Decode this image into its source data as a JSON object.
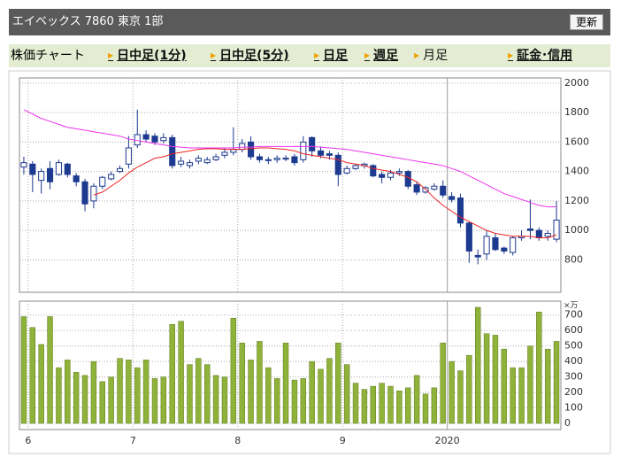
{
  "header": {
    "title": "エイベックス 7860 東京 1部",
    "button": "更新"
  },
  "nav": {
    "label": "株価チャート",
    "tabs": [
      "日中足(1分)",
      "日中足(5分)",
      "日足",
      "週足",
      "月足",
      "証金･信用"
    ]
  },
  "chart_data": [
    {
      "type": "candlestick",
      "categories": [
        null,
        "6",
        null,
        null,
        null,
        null,
        null,
        null,
        null,
        null,
        null,
        null,
        null,
        "7",
        null,
        null,
        null,
        null,
        null,
        null,
        null,
        null,
        null,
        null,
        null,
        "8",
        null,
        null,
        null,
        null,
        null,
        null,
        null,
        null,
        null,
        null,
        null,
        "9",
        null,
        null,
        null,
        null,
        null,
        null,
        null,
        null,
        null,
        null,
        null,
        "2020",
        null,
        null,
        null,
        null,
        null,
        null,
        null,
        null,
        null,
        null,
        null,
        null
      ],
      "open": [
        1430,
        1450,
        1340,
        1420,
        1380,
        1450,
        1370,
        1330,
        1200,
        1300,
        1350,
        1400,
        1450,
        1580,
        1650,
        1640,
        1610,
        1630,
        1450,
        1440,
        1470,
        1460,
        1480,
        1510,
        1530,
        1550,
        1600,
        1500,
        1480,
        1480,
        1490,
        1500,
        1480,
        1630,
        1540,
        1520,
        1510,
        1390,
        1420,
        1440,
        1440,
        1380,
        1360,
        1390,
        1400,
        1310,
        1260,
        1280,
        1300,
        1230,
        1220,
        1050,
        830,
        840,
        950,
        880,
        850,
        950,
        1010,
        1000,
        960,
        940
      ],
      "high": [
        1500,
        1470,
        1420,
        1470,
        1480,
        1460,
        1390,
        1350,
        1320,
        1370,
        1400,
        1440,
        1640,
        1820,
        1680,
        1660,
        1660,
        1650,
        1500,
        1480,
        1510,
        1500,
        1520,
        1560,
        1700,
        1620,
        1640,
        1520,
        1500,
        1510,
        1510,
        1520,
        1640,
        1640,
        1570,
        1540,
        1530,
        1440,
        1450,
        1460,
        1450,
        1400,
        1410,
        1420,
        1410,
        1330,
        1300,
        1320,
        1340,
        1260,
        1250,
        1060,
        870,
        1000,
        980,
        890,
        960,
        1000,
        1210,
        1020,
        1000,
        1200
      ],
      "low": [
        1380,
        1260,
        1250,
        1280,
        1370,
        1360,
        1300,
        1130,
        1150,
        1280,
        1340,
        1390,
        1420,
        1560,
        1600,
        1580,
        1590,
        1420,
        1430,
        1420,
        1450,
        1450,
        1470,
        1490,
        1510,
        1530,
        1480,
        1460,
        1450,
        1460,
        1470,
        1440,
        1460,
        1500,
        1490,
        1480,
        1300,
        1380,
        1410,
        1420,
        1360,
        1320,
        1340,
        1370,
        1280,
        1240,
        1250,
        1270,
        1220,
        1190,
        1020,
        780,
        770,
        800,
        860,
        840,
        830,
        930,
        940,
        930,
        930,
        920
      ],
      "close": [
        1460,
        1380,
        1400,
        1330,
        1460,
        1380,
        1330,
        1180,
        1300,
        1360,
        1380,
        1420,
        1560,
        1650,
        1620,
        1600,
        1630,
        1440,
        1470,
        1460,
        1490,
        1480,
        1500,
        1530,
        1550,
        1590,
        1500,
        1480,
        1480,
        1490,
        1490,
        1460,
        1600,
        1540,
        1510,
        1510,
        1380,
        1420,
        1440,
        1450,
        1370,
        1360,
        1390,
        1400,
        1300,
        1260,
        1290,
        1300,
        1240,
        1210,
        1050,
        860,
        820,
        960,
        870,
        860,
        950,
        960,
        1000,
        950,
        980,
        1070
      ],
      "up_color": "#ffffff",
      "down_color": "#1c3a8f",
      "edge_color": "#1c3a8f",
      "series": [
        {
          "color": "#ee33ee",
          "values": [
            1820,
            1790,
            1760,
            1740,
            1720,
            1700,
            1690,
            1680,
            1670,
            1660,
            1650,
            1640,
            1620,
            1610,
            1600,
            1590,
            1580,
            1570,
            1565,
            1560,
            1560,
            1560,
            1560,
            1560,
            1560,
            1565,
            1565,
            1570,
            1570,
            1570,
            1570,
            1570,
            1570,
            1570,
            1565,
            1560,
            1555,
            1550,
            1540,
            1530,
            1520,
            1510,
            1500,
            1490,
            1480,
            1470,
            1460,
            1450,
            1440,
            1420,
            1400,
            1370,
            1340,
            1310,
            1280,
            1250,
            1230,
            1210,
            1190,
            1170,
            1160,
            1160
          ]
        },
        {
          "color": "#ee2222",
          "values": [
            null,
            null,
            null,
            null,
            null,
            null,
            null,
            null,
            1240,
            1260,
            1300,
            1340,
            1390,
            1430,
            1460,
            1490,
            1500,
            1520,
            1530,
            1540,
            1550,
            1555,
            1555,
            1550,
            1550,
            1550,
            1555,
            1560,
            1560,
            1555,
            1550,
            1540,
            1520,
            1510,
            1500,
            1490,
            1480,
            1460,
            1450,
            1440,
            1420,
            1410,
            1400,
            1380,
            1360,
            1330,
            1280,
            1220,
            1170,
            1130,
            1090,
            1060,
            1030,
            1000,
            980,
            970,
            960,
            960,
            960,
            950,
            950,
            970
          ]
        }
      ],
      "ylim": [
        580,
        2035
      ],
      "yticks": [
        800,
        1000,
        1200,
        1400,
        1600,
        1800,
        2000
      ],
      "grid": true
    },
    {
      "type": "bar",
      "y_unit": "×万",
      "color": "#8fb23a",
      "values": [
        690,
        620,
        510,
        690,
        360,
        410,
        330,
        310,
        400,
        270,
        300,
        420,
        410,
        360,
        410,
        290,
        300,
        640,
        660,
        380,
        420,
        380,
        310,
        300,
        680,
        520,
        410,
        530,
        360,
        290,
        520,
        280,
        290,
        400,
        350,
        420,
        520,
        380,
        260,
        220,
        240,
        260,
        240,
        210,
        230,
        310,
        190,
        230,
        520,
        400,
        340,
        440,
        750,
        580,
        570,
        480,
        360,
        360,
        500,
        720,
        480,
        530
      ],
      "ylim": [
        -40,
        790
      ],
      "yticks": [
        0,
        100,
        200,
        300,
        400,
        500,
        600,
        700
      ],
      "grid": true
    }
  ]
}
